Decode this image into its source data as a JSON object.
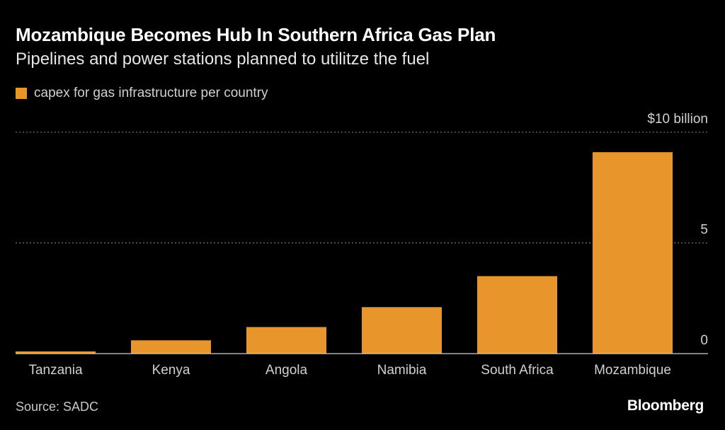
{
  "header": {
    "title": "Mozambique Becomes Hub In Southern Africa Gas Plan",
    "subtitle": "Pipelines and power stations planned to utilitze the fuel"
  },
  "legend": {
    "label": "capex for gas infrastructure per country"
  },
  "colors": {
    "bar": "#e8952b",
    "grid": "#8a8a8a",
    "axis": "#cfcfcf",
    "background": "#000000"
  },
  "chart_data": {
    "type": "bar",
    "title": "Mozambique Becomes Hub In Southern Africa Gas Plan",
    "subtitle": "Pipelines and power stations planned to utilitze the fuel",
    "categories": [
      "Tanzania",
      "Kenya",
      "Angola",
      "Namibia",
      "South Africa",
      "Mozambique"
    ],
    "series": [
      {
        "name": "capex for gas infrastructure per country",
        "values": [
          0.1,
          0.6,
          1.2,
          2.1,
          3.5,
          9.1
        ]
      }
    ],
    "ylim": [
      0,
      10
    ],
    "yticks": [
      0,
      5,
      10
    ],
    "ytick_labels": [
      "0",
      "5",
      "$10 billion"
    ],
    "xlabel": "",
    "ylabel": "",
    "grid": true,
    "legend_position": "top-left"
  },
  "footer": {
    "source": "Source: SADC",
    "brand": "Bloomberg"
  }
}
